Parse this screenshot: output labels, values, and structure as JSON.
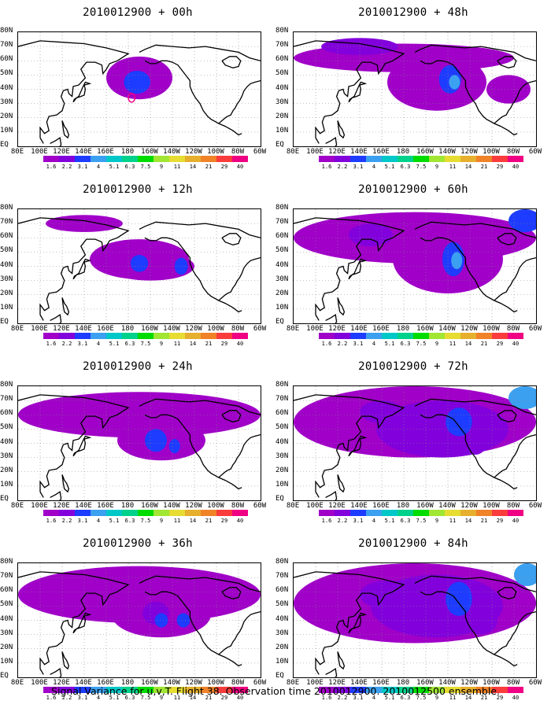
{
  "panels": [
    {
      "title": "2010012900 + 00h"
    },
    {
      "title": "2010012900 + 48h"
    },
    {
      "title": "2010012900 + 12h"
    },
    {
      "title": "2010012900 + 60h"
    },
    {
      "title": "2010012900 + 24h"
    },
    {
      "title": "2010012900 + 72h"
    },
    {
      "title": "2010012900 + 36h"
    },
    {
      "title": "2010012900 + 84h"
    }
  ],
  "lat_labels": [
    "80N",
    "70N",
    "60N",
    "50N",
    "40N",
    "30N",
    "20N",
    "10N",
    "EQ"
  ],
  "lon_labels": [
    "80E",
    "100E",
    "120E",
    "140E",
    "160E",
    "180",
    "160W",
    "140W",
    "120W",
    "100W",
    "80W",
    "60W"
  ],
  "colorbar": {
    "labels": [
      "1.6",
      "2.2",
      "3.1",
      "4",
      "5.1",
      "6.3",
      "7.5",
      "9",
      "11",
      "14",
      "21",
      "29",
      "40"
    ],
    "colors": [
      "#a000c8",
      "#8200dc",
      "#1e3cff",
      "#3ca0f0",
      "#00c8c8",
      "#00d28c",
      "#00dc00",
      "#a0e632",
      "#e6dc32",
      "#e6af2d",
      "#f08228",
      "#fa3c3c",
      "#f00082"
    ]
  },
  "caption": "Signal Variance for u,v,T. Flight 38. Observation time 2010012900. 2010012500 ensemble."
}
